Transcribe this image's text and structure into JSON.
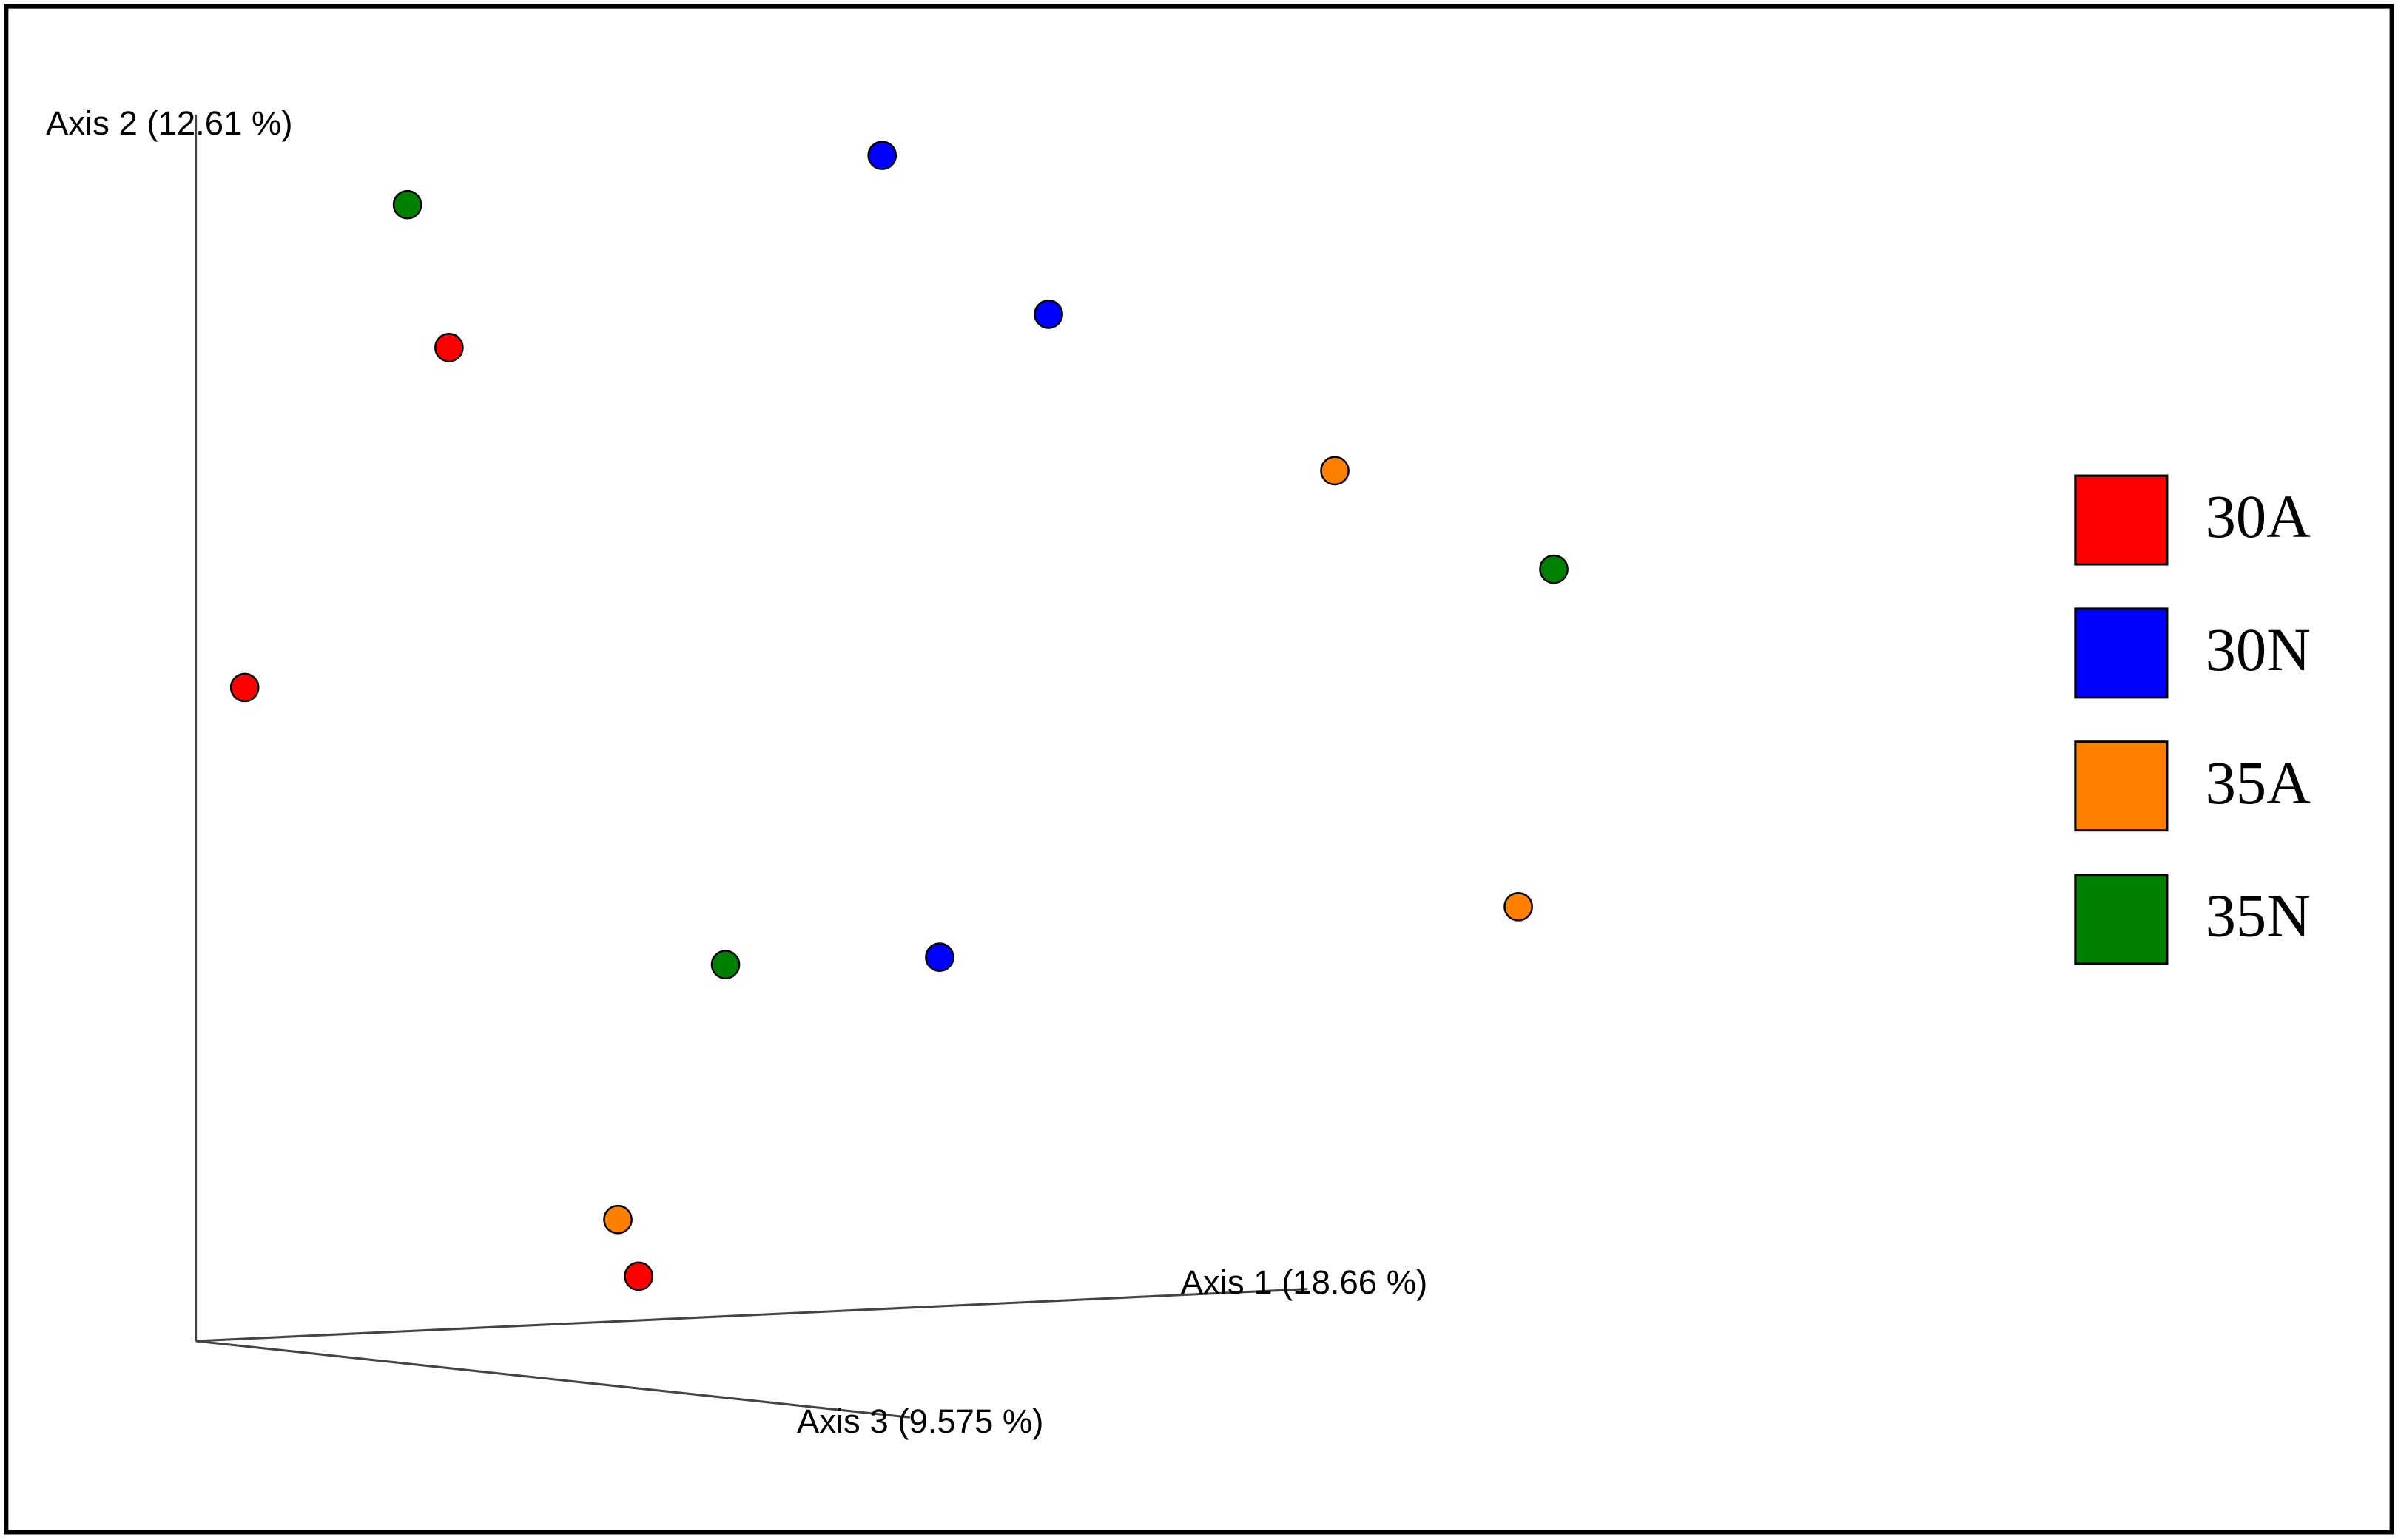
{
  "chart_data": {
    "type": "scatter",
    "axis_labels": [
      "Axis 1 (18.66 %)",
      "Axis 2 (12.61 %)",
      "Axis 3 (9.575 %)"
    ],
    "xlim": [
      -16,
      180
    ],
    "ylim": [
      -16,
      109
    ],
    "series": [
      {
        "name": "30A",
        "color": "#ff0000",
        "x": [
          20.7,
          4.0,
          36.2
        ],
        "y": [
          80.8,
          53.2,
          5.4
        ]
      },
      {
        "name": "30N",
        "color": "#0000ff",
        "x": [
          56.1,
          69.7,
          60.8
        ],
        "y": [
          96.4,
          83.5,
          31.3
        ]
      },
      {
        "name": "35A",
        "color": "#ff7f00",
        "x": [
          93.1,
          108.1,
          34.5
        ],
        "y": [
          70.8,
          35.4,
          10.0
        ]
      },
      {
        "name": "35N",
        "color": "#008000",
        "x": [
          17.3,
          111.0,
          43.3
        ],
        "y": [
          92.4,
          62.8,
          30.7
        ]
      }
    ]
  }
}
